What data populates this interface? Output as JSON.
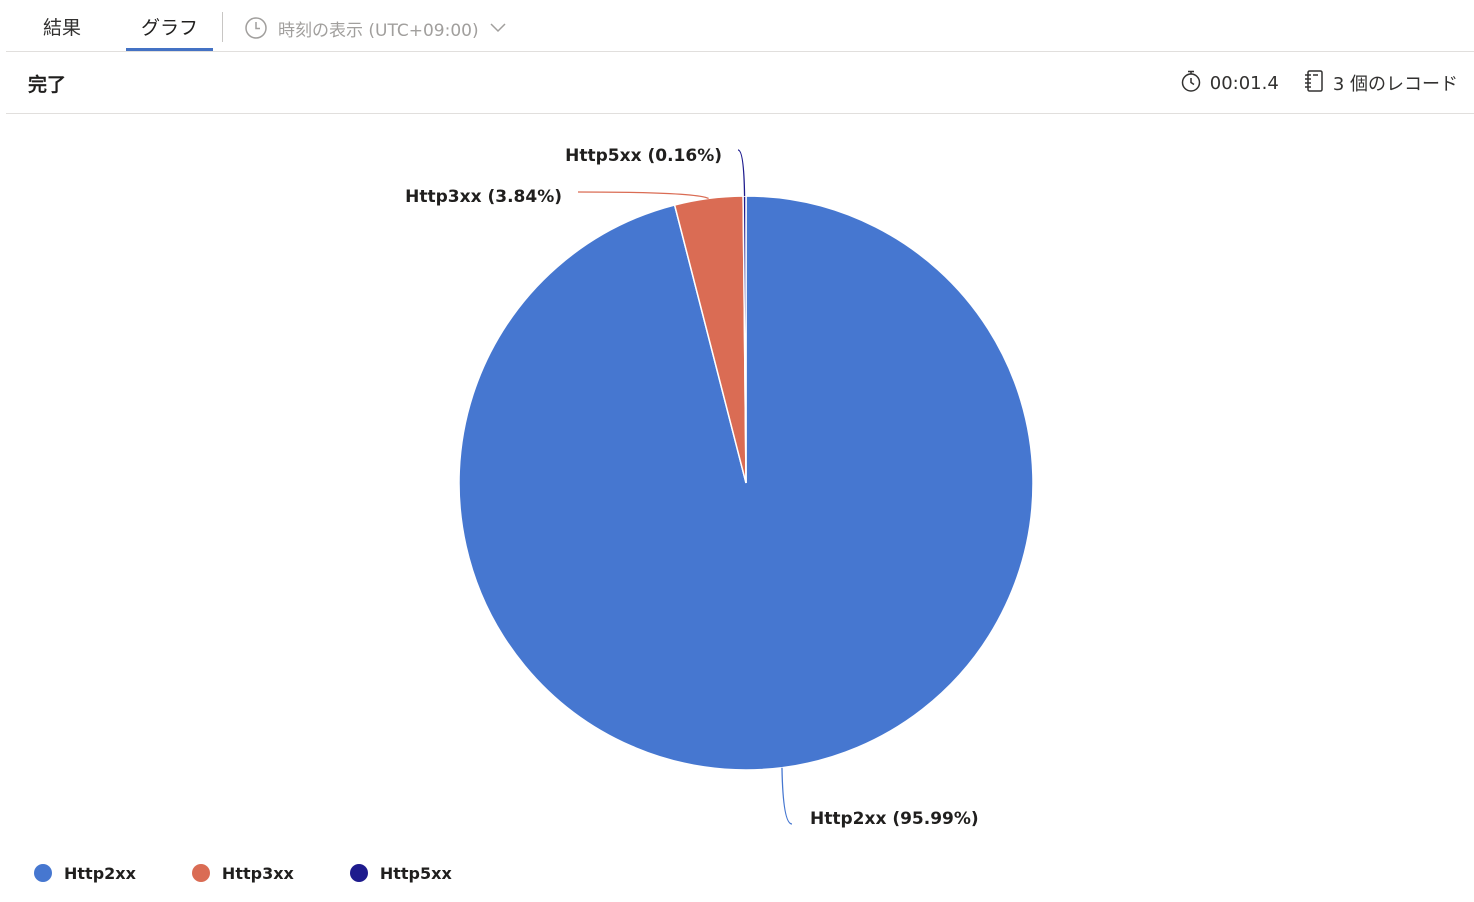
{
  "tabs": [
    {
      "label": "結果",
      "active": false
    },
    {
      "label": "グラフ",
      "active": true
    }
  ],
  "timezone": {
    "label": "時刻の表示 (UTC+09:00)",
    "icon": "clock-icon",
    "chevron": "chevron-down-icon"
  },
  "status": {
    "title": "完了",
    "elapsed": "00:01.4",
    "elapsed_icon": "stopwatch-icon",
    "records": "3 個のレコード",
    "records_icon": "notebook-icon"
  },
  "colors": {
    "accent": "#4472c4",
    "Http2xx": "#4677d0",
    "Http3xx": "#da6c54",
    "Http5xx": "#1e1b8d"
  },
  "chart_data": {
    "type": "pie",
    "categories": [
      "Http2xx",
      "Http3xx",
      "Http5xx"
    ],
    "values": [
      95.99,
      3.84,
      0.16
    ],
    "data_labels": [
      "Http2xx (95.99%)",
      "Http3xx (3.84%)",
      "Http5xx (0.16%)"
    ],
    "legend": [
      "Http2xx",
      "Http3xx",
      "Http5xx"
    ],
    "legend_position": "bottom-left",
    "start_angle": "top",
    "direction": "clockwise"
  }
}
